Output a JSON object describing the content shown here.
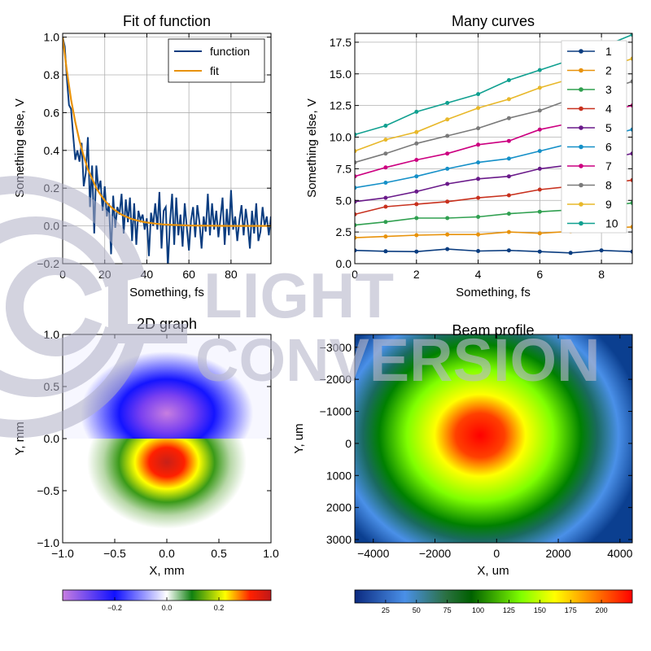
{
  "watermark": {
    "line1": "LIGHT",
    "line2": "CONVERSION"
  },
  "chart_data": [
    {
      "type": "line",
      "title": "Fit of function",
      "xlabel": "Something, fs",
      "ylabel": "Something else, V",
      "xlim": [
        0,
        99
      ],
      "ylim": [
        -0.2,
        1.02
      ],
      "xticks": [
        "0",
        "20",
        "40",
        "60",
        "80"
      ],
      "yticks": [
        "−0.2",
        "0.0",
        "0.2",
        "0.4",
        "0.6",
        "0.8",
        "1.0"
      ],
      "grid": true,
      "legend": "top-right",
      "colors": [
        "#0b3d80",
        "#e8920a"
      ],
      "series": [
        {
          "name": "function",
          "x": [
            0,
            1,
            2,
            3,
            4,
            5,
            6,
            7,
            8,
            9,
            10,
            11,
            12,
            13,
            14,
            15,
            16,
            17,
            18,
            19,
            20,
            21,
            22,
            23,
            24,
            25,
            26,
            27,
            28,
            29,
            30,
            31,
            32,
            33,
            34,
            35,
            36,
            37,
            38,
            39,
            40,
            41,
            42,
            43,
            44,
            45,
            46,
            47,
            48,
            49,
            50,
            51,
            52,
            53,
            54,
            55,
            56,
            57,
            58,
            59,
            60,
            61,
            62,
            63,
            64,
            65,
            66,
            67,
            68,
            69,
            70,
            71,
            72,
            73,
            74,
            75,
            76,
            77,
            78,
            79,
            80,
            81,
            82,
            83,
            84,
            85,
            86,
            87,
            88,
            89,
            90,
            91,
            92,
            93,
            94,
            95,
            96,
            97,
            98,
            99
          ],
          "y": [
            1.0,
            0.95,
            0.78,
            0.64,
            0.62,
            0.48,
            0.35,
            0.4,
            0.34,
            0.44,
            0.21,
            0.28,
            0.47,
            0.1,
            0.32,
            -0.04,
            0.32,
            0.19,
            0.24,
            0.08,
            0.21,
            0.05,
            0.12,
            -0.15,
            0.16,
            -0.01,
            0.1,
            0.06,
            0.17,
            -0.04,
            0.14,
            0.02,
            0.15,
            -0.08,
            0.12,
            -0.1,
            0.08,
            0.03,
            0.06,
            -0.02,
            0.04,
            -0.16,
            0.07,
            0.0,
            0.12,
            -0.02,
            0.18,
            -0.12,
            0.08,
            0.1,
            -0.22,
            0.02,
            0.17,
            -0.1,
            0.15,
            -0.05,
            0.06,
            -0.11,
            0.12,
            -0.01,
            -0.13,
            0.03,
            0.1,
            -0.06,
            0.11,
            0.02,
            -0.12,
            0.05,
            -0.03,
            0.17,
            -0.05,
            0.12,
            -0.02,
            0.08,
            -0.06,
            0.04,
            0.15,
            -0.1,
            0.09,
            -0.05,
            0.19,
            -0.02,
            0.05,
            -0.08,
            0.03,
            0.11,
            -0.05,
            0.09,
            0.0,
            -0.12,
            0.08,
            -0.04,
            0.12,
            -0.08,
            -0.03,
            0.1,
            0.0,
            0.05,
            -0.05,
            0.05
          ]
        },
        {
          "name": "fit",
          "x": [
            0,
            2,
            4,
            6,
            8,
            10,
            12,
            14,
            16,
            18,
            20,
            22,
            24,
            26,
            28,
            30,
            32,
            34,
            36,
            38,
            40,
            44,
            48,
            52,
            56,
            60,
            70,
            80,
            90,
            99
          ],
          "y": [
            1.0,
            0.82,
            0.67,
            0.55,
            0.45,
            0.37,
            0.3,
            0.25,
            0.2,
            0.165,
            0.135,
            0.11,
            0.09,
            0.074,
            0.06,
            0.05,
            0.04,
            0.033,
            0.027,
            0.022,
            0.018,
            0.012,
            0.008,
            0.005,
            0.004,
            0.002,
            0.001,
            0.0,
            0.0,
            0.0
          ]
        }
      ]
    },
    {
      "type": "line",
      "title": "Many curves",
      "xlabel": "Something, fs",
      "ylabel": "Something else, V",
      "xlim": [
        0,
        9
      ],
      "ylim": [
        0,
        18.2
      ],
      "xticks": [
        "0",
        "2",
        "4",
        "6",
        "8"
      ],
      "yticks": [
        "0.0",
        "2.5",
        "5.0",
        "7.5",
        "10.0",
        "12.5",
        "15.0",
        "17.5"
      ],
      "grid": true,
      "legend": "top-right",
      "x": [
        0,
        1,
        2,
        3,
        4,
        5,
        6,
        7,
        8,
        9
      ],
      "series": [
        {
          "name": "1",
          "color": "#0b3d80",
          "values": [
            1.05,
            0.98,
            0.95,
            1.15,
            1.0,
            1.05,
            0.95,
            0.85,
            1.05,
            0.95
          ]
        },
        {
          "name": "2",
          "color": "#e8920a",
          "values": [
            2.05,
            2.15,
            2.25,
            2.3,
            2.3,
            2.5,
            2.4,
            2.55,
            2.8,
            2.9
          ]
        },
        {
          "name": "3",
          "color": "#30a050",
          "values": [
            3.05,
            3.3,
            3.6,
            3.6,
            3.7,
            3.95,
            4.1,
            4.25,
            4.5,
            4.8
          ]
        },
        {
          "name": "4",
          "color": "#c8311e",
          "values": [
            3.9,
            4.5,
            4.7,
            4.9,
            5.2,
            5.4,
            5.85,
            6.1,
            6.3,
            6.6
          ]
        },
        {
          "name": "5",
          "color": "#6a1a8a",
          "values": [
            4.9,
            5.2,
            5.7,
            6.3,
            6.7,
            6.9,
            7.5,
            7.8,
            8.2,
            8.7
          ]
        },
        {
          "name": "6",
          "color": "#1590c8",
          "values": [
            6.0,
            6.4,
            6.9,
            7.5,
            8.0,
            8.3,
            8.9,
            9.5,
            10.0,
            10.6
          ]
        },
        {
          "name": "7",
          "color": "#cc0080",
          "values": [
            6.9,
            7.6,
            8.2,
            8.7,
            9.4,
            9.7,
            10.6,
            11.1,
            11.9,
            12.5
          ]
        },
        {
          "name": "8",
          "color": "#7a7a7a",
          "values": [
            8.0,
            8.7,
            9.5,
            10.1,
            10.7,
            11.5,
            12.1,
            13.0,
            13.6,
            14.4
          ]
        },
        {
          "name": "9",
          "color": "#e8b82a",
          "values": [
            8.9,
            9.8,
            10.4,
            11.4,
            12.3,
            13.0,
            13.9,
            14.6,
            15.4,
            16.2
          ]
        },
        {
          "name": "10",
          "color": "#10a090",
          "values": [
            10.2,
            10.9,
            12.0,
            12.7,
            13.4,
            14.5,
            15.3,
            16.1,
            17.1,
            18.1
          ]
        }
      ]
    },
    {
      "type": "heatmap",
      "title": "2D graph",
      "xlabel": "X, mm",
      "ylabel": "Y, mm",
      "xlim": [
        -1.0,
        1.0
      ],
      "ylim": [
        -1.0,
        1.0
      ],
      "xticks": [
        "−1.0",
        "−0.5",
        "0.0",
        "0.5",
        "1.0"
      ],
      "yticks": [
        "−1.0",
        "−0.5",
        "0.0",
        "0.5",
        "1.0"
      ],
      "colorbar": {
        "ticks": [
          "−0.2",
          "0.0",
          "0.2"
        ],
        "min": -0.4,
        "max": 0.4,
        "colors": [
          "#c87ee0",
          "#1010ff",
          "#ffffff",
          "#108010",
          "#ffff00",
          "#ff2000",
          "#c01818"
        ]
      }
    },
    {
      "type": "heatmap",
      "title": "Beam profile",
      "xlabel": "X, um",
      "ylabel": "Y, um",
      "xlim": [
        -4600,
        4400
      ],
      "ylim": [
        3100,
        -3400
      ],
      "xticks": [
        "−4000",
        "−2000",
        "0",
        "2000",
        "4000"
      ],
      "yticks": [
        "−3000",
        "−2000",
        "−1000",
        "0",
        "1000",
        "2000",
        "3000"
      ],
      "colorbar": {
        "ticks": [
          "25",
          "50",
          "75",
          "100",
          "125",
          "150",
          "175",
          "200"
        ],
        "min": 0,
        "max": 225,
        "colors": [
          "#0b2a80",
          "#4a90e8",
          "#2a7040",
          "#006000",
          "#80ff00",
          "#ffff00",
          "#ff8000",
          "#ff0000"
        ]
      }
    }
  ]
}
